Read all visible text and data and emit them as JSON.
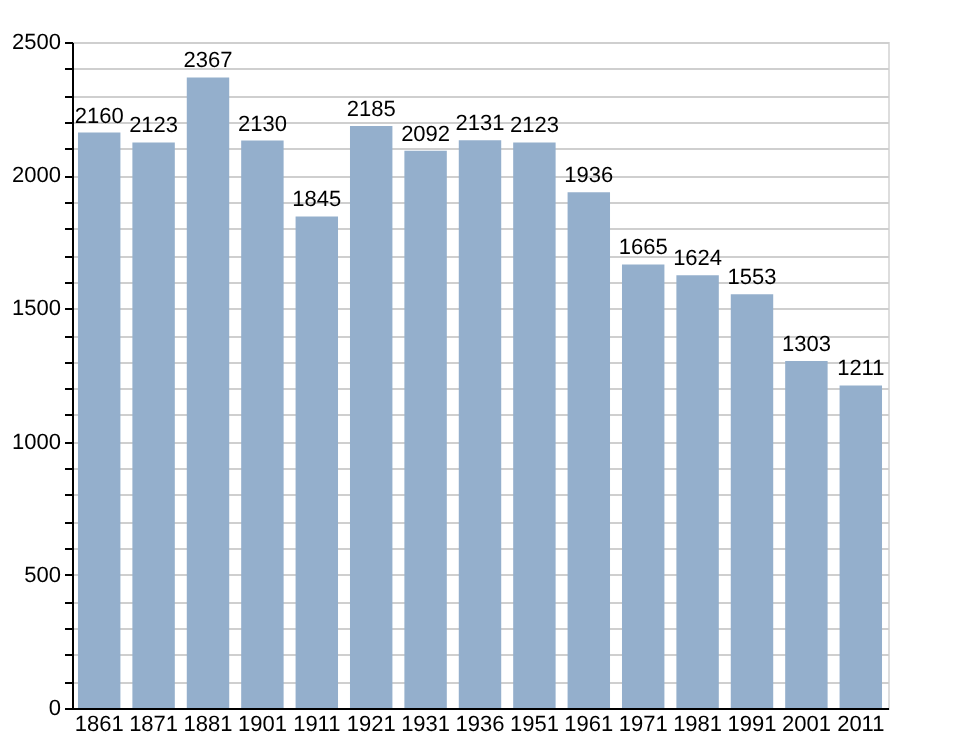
{
  "chart_data": {
    "type": "bar",
    "categories": [
      "1861",
      "1871",
      "1881",
      "1901",
      "1911",
      "1921",
      "1931",
      "1936",
      "1951",
      "1961",
      "1971",
      "1981",
      "1991",
      "2001",
      "2011"
    ],
    "values": [
      2160,
      2123,
      2367,
      2130,
      1845,
      2185,
      2092,
      2131,
      2123,
      1936,
      1665,
      1624,
      1553,
      1303,
      1211
    ],
    "color": "#94afcc",
    "ylim": [
      0,
      2500
    ],
    "yticks": [
      0,
      {
        "value": 100,
        "label": null
      },
      {
        "value": 200,
        "label": null
      },
      {
        "value": 300,
        "label": null
      },
      {
        "value": 400,
        "label": null
      },
      500,
      {
        "value": 600,
        "label": null
      },
      {
        "value": 700,
        "label": null
      },
      {
        "value": 800,
        "label": null
      },
      {
        "value": 900,
        "label": null
      },
      1000,
      {
        "value": 1100,
        "label": null
      },
      {
        "value": 1200,
        "label": null
      },
      {
        "value": 1300,
        "label": null
      },
      {
        "value": 1400,
        "label": null
      },
      1500,
      {
        "value": 1600,
        "label": null
      },
      {
        "value": 1700,
        "label": null
      },
      {
        "value": 1800,
        "label": null
      },
      {
        "value": 1900,
        "label": null
      },
      2000,
      {
        "value": 2100,
        "label": null
      },
      {
        "value": 2200,
        "label": null
      },
      {
        "value": 2300,
        "label": null
      },
      {
        "value": 2400,
        "label": null
      },
      2500
    ],
    "grid": true,
    "data_labels": true
  }
}
